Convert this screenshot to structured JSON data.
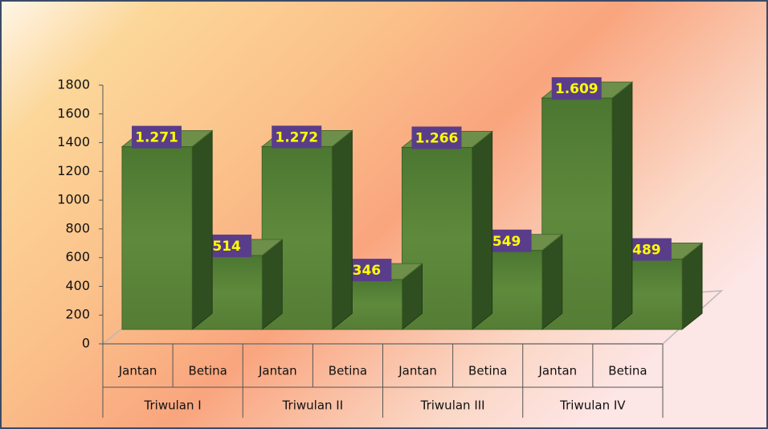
{
  "chart_data": {
    "type": "bar",
    "categories": [
      "Jantan",
      "Betina",
      "Jantan",
      "Betina",
      "Jantan",
      "Betina",
      "Jantan",
      "Betina"
    ],
    "groups": [
      "Triwulan I",
      "Triwulan II",
      "Triwulan III",
      "Triwulan IV"
    ],
    "values": [
      1271,
      514,
      1272,
      346,
      1266,
      549,
      1609,
      489
    ],
    "value_labels": [
      "1.271",
      "514",
      "1.272",
      "346",
      "1.266",
      "549",
      "1.609",
      "489"
    ],
    "color": "#5f8a3c",
    "ylim": [
      0,
      1800
    ],
    "yticks": [
      0,
      200,
      400,
      600,
      800,
      1000,
      1200,
      1400,
      1600,
      1800
    ]
  }
}
